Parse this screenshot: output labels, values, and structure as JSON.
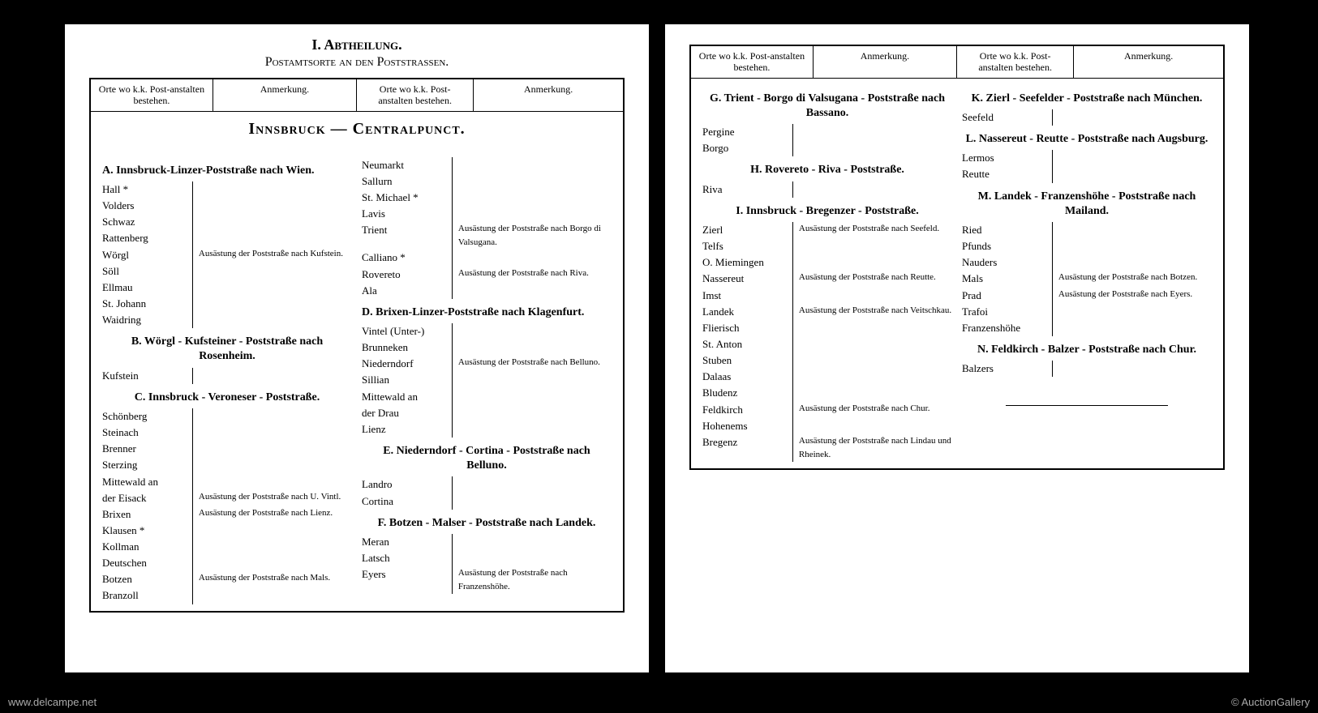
{
  "title": "I. Abtheilung.",
  "subtitle": "Postamtsorte an den Poststraßen.",
  "headers": {
    "orte": "Orte wo k.k. Post-anstalten bestehen.",
    "anmerkung": "Anmerkung."
  },
  "central": "Innsbruck — Centralpunct.",
  "routes": {
    "A": {
      "title": "A. Innsbruck-Linzer-Poststraße nach Wien.",
      "places": [
        "Hall *",
        "Volders",
        "Schwaz",
        "Rattenberg",
        "Wörgl",
        "Söll",
        "Ellmau",
        "St. Johann",
        "Waidring"
      ],
      "notes": {
        "4": "Ausästung der Poststraße nach Kufstein."
      }
    },
    "B": {
      "title": "B. Wörgl - Kufsteiner - Poststraße nach Rosenheim.",
      "places": [
        "Kufstein"
      ]
    },
    "C": {
      "title": "C. Innsbruck - Veroneser - Poststraße.",
      "places": [
        "Schönberg",
        "Steinach",
        "Brenner",
        "Sterzing",
        "Mittewald an",
        "  der Eisack",
        "Brixen",
        "Klausen *",
        "Kollman",
        "Deutschen",
        "Botzen",
        "Branzoll"
      ],
      "notes": {
        "5": "Ausästung der Poststraße nach U. Vintl.",
        "6": "Ausästung der Poststraße nach Lienz.",
        "10": "Ausästung der Poststraße nach Mals."
      }
    },
    "Ccont": {
      "places": [
        "Neumarkt",
        "Sallurn",
        "St. Michael *",
        "Lavis",
        "Trient",
        "Calliano *",
        "Rovereto",
        "Ala"
      ],
      "notes": {
        "4": "Ausästung der Poststraße nach Borgo di Valsugana.",
        "6": "Ausästung der Poststraße nach Riva."
      }
    },
    "D": {
      "title": "D. Brixen-Linzer-Poststraße nach Klagenfurt.",
      "places": [
        "Vintel (Unter-)",
        "Brunneken",
        "Niederndorf",
        "Sillian",
        "Mittewald an",
        "  der Drau",
        "Lienz"
      ],
      "notes": {
        "2": "Ausästung der Poststraße nach Belluno."
      }
    },
    "E": {
      "title": "E. Niederndorf - Cortina - Poststraße nach Belluno.",
      "places": [
        "Landro",
        "Cortina"
      ]
    },
    "F": {
      "title": "F. Botzen - Malser - Poststraße nach Landek.",
      "places": [
        "Meran",
        "Latsch",
        "Eyers"
      ],
      "notes": {
        "2": "Ausästung der Poststraße nach Franzenshöhe."
      }
    },
    "G": {
      "title": "G. Trient - Borgo di Valsugana - Poststraße nach Bassano.",
      "places": [
        "Pergine",
        "Borgo"
      ]
    },
    "H": {
      "title": "H. Rovereto - Riva - Poststraße.",
      "places": [
        "Riva"
      ]
    },
    "I": {
      "title": "I. Innsbruck - Bregenzer - Poststraße.",
      "places": [
        "Zierl",
        "Telfs",
        "O. Miemingen",
        "Nassereut",
        "Imst",
        "Landek",
        "Flierisch",
        "St. Anton",
        "Stuben",
        "Dalaas",
        "Bludenz",
        "Feldkirch",
        "Hohenems",
        "Bregenz"
      ],
      "notes": {
        "0": "Ausästung der Poststraße nach Seefeld.",
        "3": "Ausästung der Poststraße nach Reutte.",
        "5": "Ausästung der Poststraße nach Veitschkau.",
        "11": "Ausästung der Poststraße nach Chur.",
        "13": "Ausästung der Poststraße nach Lindau und Rheinek."
      }
    },
    "K": {
      "title": "K. Zierl - Seefelder - Poststraße nach München.",
      "places": [
        "Seefeld"
      ]
    },
    "L": {
      "title": "L. Nassereut - Reutte - Poststraße nach Augsburg.",
      "places": [
        "Lermos",
        "Reutte"
      ]
    },
    "M": {
      "title": "M. Landek - Franzenshöhe - Poststraße nach Mailand.",
      "places": [
        "Ried",
        "Pfunds",
        "Nauders",
        "Mals",
        "Prad",
        "Trafoi",
        "Franzenshöhe"
      ],
      "notes": {
        "3": "Ausästung der Poststraße nach Botzen.",
        "4": "Ausästung der Poststraße nach Eyers."
      }
    },
    "N": {
      "title": "N. Feldkirch - Balzer - Poststraße nach Chur.",
      "places": [
        "Balzers"
      ]
    }
  },
  "watermarks": {
    "left": "www.delcampe.net",
    "right": "© AuctionGallery"
  }
}
